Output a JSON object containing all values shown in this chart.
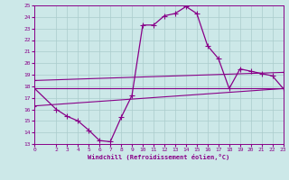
{
  "xlabel": "Windchill (Refroidissement éolien,°C)",
  "ylabel": "",
  "xlim": [
    0,
    23
  ],
  "ylim": [
    13,
    25
  ],
  "xticks": [
    0,
    2,
    3,
    4,
    5,
    6,
    7,
    8,
    9,
    10,
    11,
    12,
    13,
    14,
    15,
    16,
    17,
    18,
    19,
    20,
    21,
    22,
    23
  ],
  "yticks": [
    13,
    14,
    15,
    16,
    17,
    18,
    19,
    20,
    21,
    22,
    23,
    24,
    25
  ],
  "bg_color": "#cce8e8",
  "line_color": "#880088",
  "grid_color": "#aacccc",
  "line1_x": [
    0,
    2,
    3,
    4,
    5,
    6,
    7,
    8,
    9,
    10,
    11,
    12,
    13,
    14,
    15,
    16,
    17,
    18,
    19,
    20,
    21,
    22,
    23
  ],
  "line1_y": [
    17.8,
    16.0,
    15.4,
    15.0,
    14.2,
    13.3,
    13.2,
    15.3,
    17.2,
    23.3,
    23.3,
    24.1,
    24.3,
    24.9,
    24.3,
    21.5,
    20.4,
    17.8,
    19.5,
    19.3,
    19.1,
    18.9,
    17.8
  ],
  "line2_x": [
    0,
    23
  ],
  "line2_y": [
    17.8,
    17.8
  ],
  "line3_x": [
    0,
    23
  ],
  "line3_y": [
    18.5,
    19.2
  ],
  "line4_x": [
    0,
    23
  ],
  "line4_y": [
    16.3,
    17.8
  ]
}
